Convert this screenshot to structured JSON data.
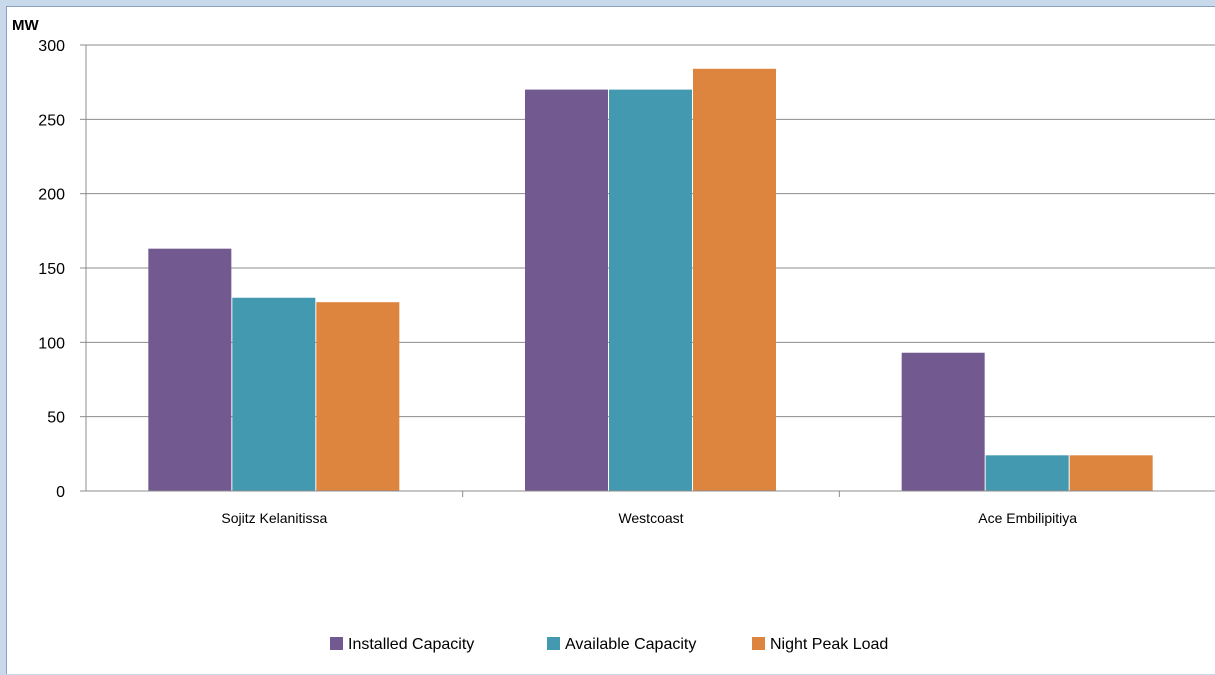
{
  "chart_data": {
    "type": "bar",
    "title": "",
    "ylabel": "MW",
    "xlabel": "",
    "categories": [
      "Sojitz Kelanitissa",
      "Westcoast",
      "Ace Embilipitiya"
    ],
    "series": [
      {
        "name": "Installed Capacity",
        "color": "#725990",
        "values": [
          163,
          270,
          93
        ]
      },
      {
        "name": "Available Capacity",
        "color": "#4299b0",
        "values": [
          130,
          270,
          24
        ]
      },
      {
        "name": "Night Peak Load",
        "color": "#dd843f",
        "values": [
          127,
          284,
          24
        ]
      }
    ],
    "ylim": [
      0,
      300
    ],
    "yticks": [
      0,
      50,
      100,
      150,
      200,
      250,
      300
    ],
    "grid": true,
    "legend_position": "bottom"
  }
}
